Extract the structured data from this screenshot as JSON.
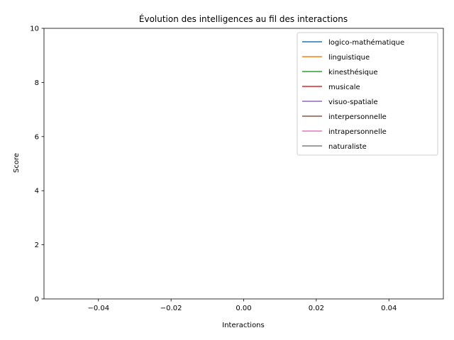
{
  "chart_data": {
    "type": "line",
    "title": "Évolution des intelligences au fil des interactions",
    "xlabel": "Interactions",
    "ylabel": "Score",
    "xlim": [
      -0.055,
      0.055
    ],
    "ylim": [
      0,
      10
    ],
    "x_ticks": [
      -0.04,
      -0.02,
      0.0,
      0.02,
      0.04
    ],
    "x_tick_labels": [
      "−0.04",
      "−0.02",
      "0.00",
      "0.02",
      "0.04"
    ],
    "y_ticks": [
      0,
      2,
      4,
      6,
      8,
      10
    ],
    "y_tick_labels": [
      "0",
      "2",
      "4",
      "6",
      "8",
      "10"
    ],
    "grid": false,
    "legend_position": "top-right",
    "series": [
      {
        "name": "logico-mathématique",
        "color": "#1f77b4",
        "values": []
      },
      {
        "name": "linguistique",
        "color": "#ff7f0e",
        "values": []
      },
      {
        "name": "kinesthésique",
        "color": "#2ca02c",
        "values": []
      },
      {
        "name": "musicale",
        "color": "#d62728",
        "values": []
      },
      {
        "name": "visuo-spatiale",
        "color": "#9467bd",
        "values": []
      },
      {
        "name": "interpersonnelle",
        "color": "#8c564b",
        "values": []
      },
      {
        "name": "intrapersonnelle",
        "color": "#e377c2",
        "values": []
      },
      {
        "name": "naturaliste",
        "color": "#7f7f7f",
        "values": []
      }
    ]
  }
}
